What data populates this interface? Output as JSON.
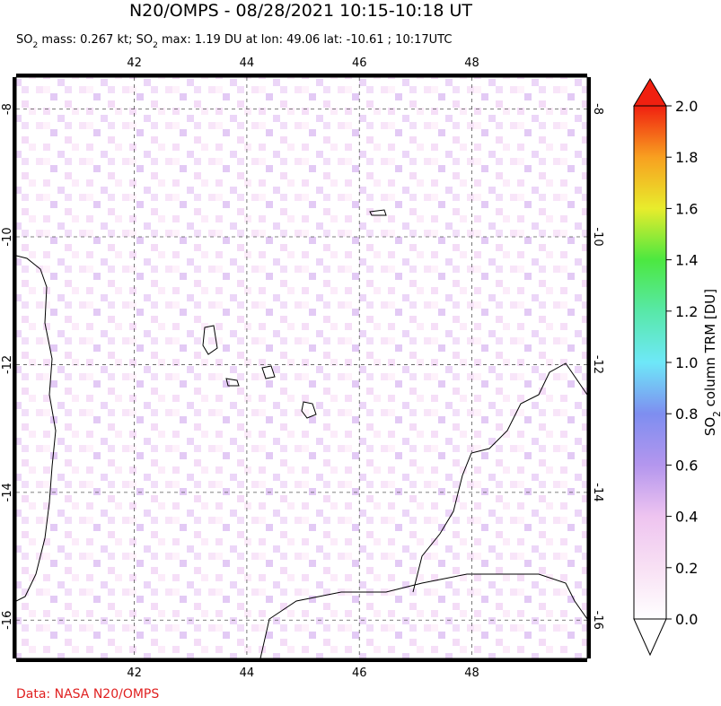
{
  "chart_data": {
    "type": "map",
    "title": "N20/OMPS - 08/28/2021 10:15-10:18 UT",
    "subtitle": [
      "SO",
      "2",
      " mass: 0.267 kt; SO",
      "2",
      " max: 1.19 DU at lon: 49.06 lat: -10.61 ; 10:17UTC"
    ],
    "xlim": [
      39.9,
      50.05
    ],
    "xticks": [
      42,
      44,
      46,
      48
    ],
    "ylim": [
      -16.6,
      -7.5
    ],
    "yticks": [
      -8,
      -10,
      -12,
      -14,
      -16
    ],
    "grid": true,
    "colorbar": {
      "label": [
        "SO",
        "2",
        " column TRM [DU]"
      ],
      "lim": [
        0,
        2
      ],
      "ticks": [
        {
          "value": 0,
          "label": "0.0"
        },
        {
          "value": 0.2,
          "label": "0.2"
        },
        {
          "value": 0.4,
          "label": "0.4"
        },
        {
          "value": 0.6,
          "label": "0.6"
        },
        {
          "value": 0.8,
          "label": "0.8"
        },
        {
          "value": 1,
          "label": "1.0"
        },
        {
          "value": 1.2,
          "label": "1.2"
        },
        {
          "value": 1.4,
          "label": "1.4"
        },
        {
          "value": 1.6,
          "label": "1.6"
        },
        {
          "value": 1.8,
          "label": "1.8"
        },
        {
          "value": 2,
          "label": "2.0"
        }
      ]
    },
    "credit": "Data: NASA N20/OMPS"
  }
}
